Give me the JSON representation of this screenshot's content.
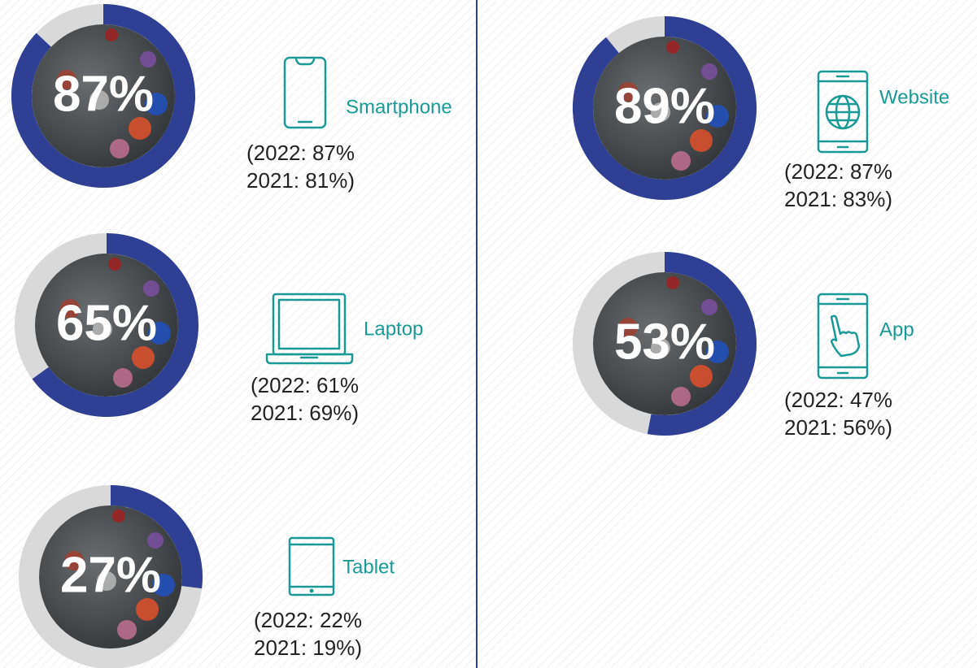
{
  "chart_data": [
    {
      "type": "donut",
      "title": "Smartphone",
      "values": [
        87
      ],
      "value_labels": [
        "87%"
      ],
      "color": "#2e3f94",
      "track_color": "#d9d9d9",
      "notes": [
        "(2022: 87%",
        "2021: 81%)"
      ]
    },
    {
      "type": "donut",
      "title": "Laptop",
      "values": [
        65
      ],
      "value_labels": [
        "65%"
      ],
      "color": "#2e3f94",
      "track_color": "#d9d9d9",
      "notes": [
        "(2022: 61%",
        "2021: 69%)"
      ]
    },
    {
      "type": "donut",
      "title": "Tablet",
      "values": [
        27
      ],
      "value_labels": [
        "27%"
      ],
      "color": "#2e3f94",
      "track_color": "#d9d9d9",
      "notes": [
        "(2022: 22%",
        "2021: 19%)"
      ]
    },
    {
      "type": "donut",
      "title": "Website",
      "values": [
        89
      ],
      "value_labels": [
        "89%"
      ],
      "color": "#2e3f94",
      "track_color": "#d9d9d9",
      "notes": [
        "(2022: 87%",
        "2021: 83%)"
      ]
    },
    {
      "type": "donut",
      "title": "App",
      "values": [
        53
      ],
      "value_labels": [
        "53%"
      ],
      "color": "#2e3f94",
      "track_color": "#d9d9d9",
      "notes": [
        "(2022: 47%",
        "2021: 56%)"
      ]
    }
  ]
}
